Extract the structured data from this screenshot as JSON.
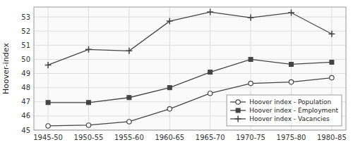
{
  "chart_data": {
    "type": "line",
    "categories": [
      "1945-50",
      "1950-55",
      "1955-60",
      "1960-65",
      "1965-70",
      "1970-75",
      "1975-80",
      "1980-85"
    ],
    "series": [
      {
        "name": "Hoover index - Population",
        "color": "#444444",
        "marker": "circle",
        "values": [
          45.3,
          45.35,
          45.6,
          46.5,
          47.6,
          48.3,
          48.4,
          48.7
        ]
      },
      {
        "name": "Hoover index - Employment",
        "color": "#444444",
        "marker": "square",
        "values": [
          46.95,
          46.95,
          47.3,
          48.0,
          49.1,
          50.0,
          49.65,
          49.8
        ]
      },
      {
        "name": "Hoover index - Vacancies",
        "color": "#444444",
        "marker": "plus",
        "values": [
          49.6,
          50.7,
          50.6,
          52.7,
          53.35,
          52.95,
          53.3,
          51.8
        ]
      }
    ],
    "y_label": "Hoover-index",
    "ylim": [
      45.0,
      53.7
    ],
    "yticks": [
      45,
      46,
      47,
      48,
      49,
      50,
      51,
      52,
      53
    ],
    "grid": true,
    "legend": "lower right"
  }
}
